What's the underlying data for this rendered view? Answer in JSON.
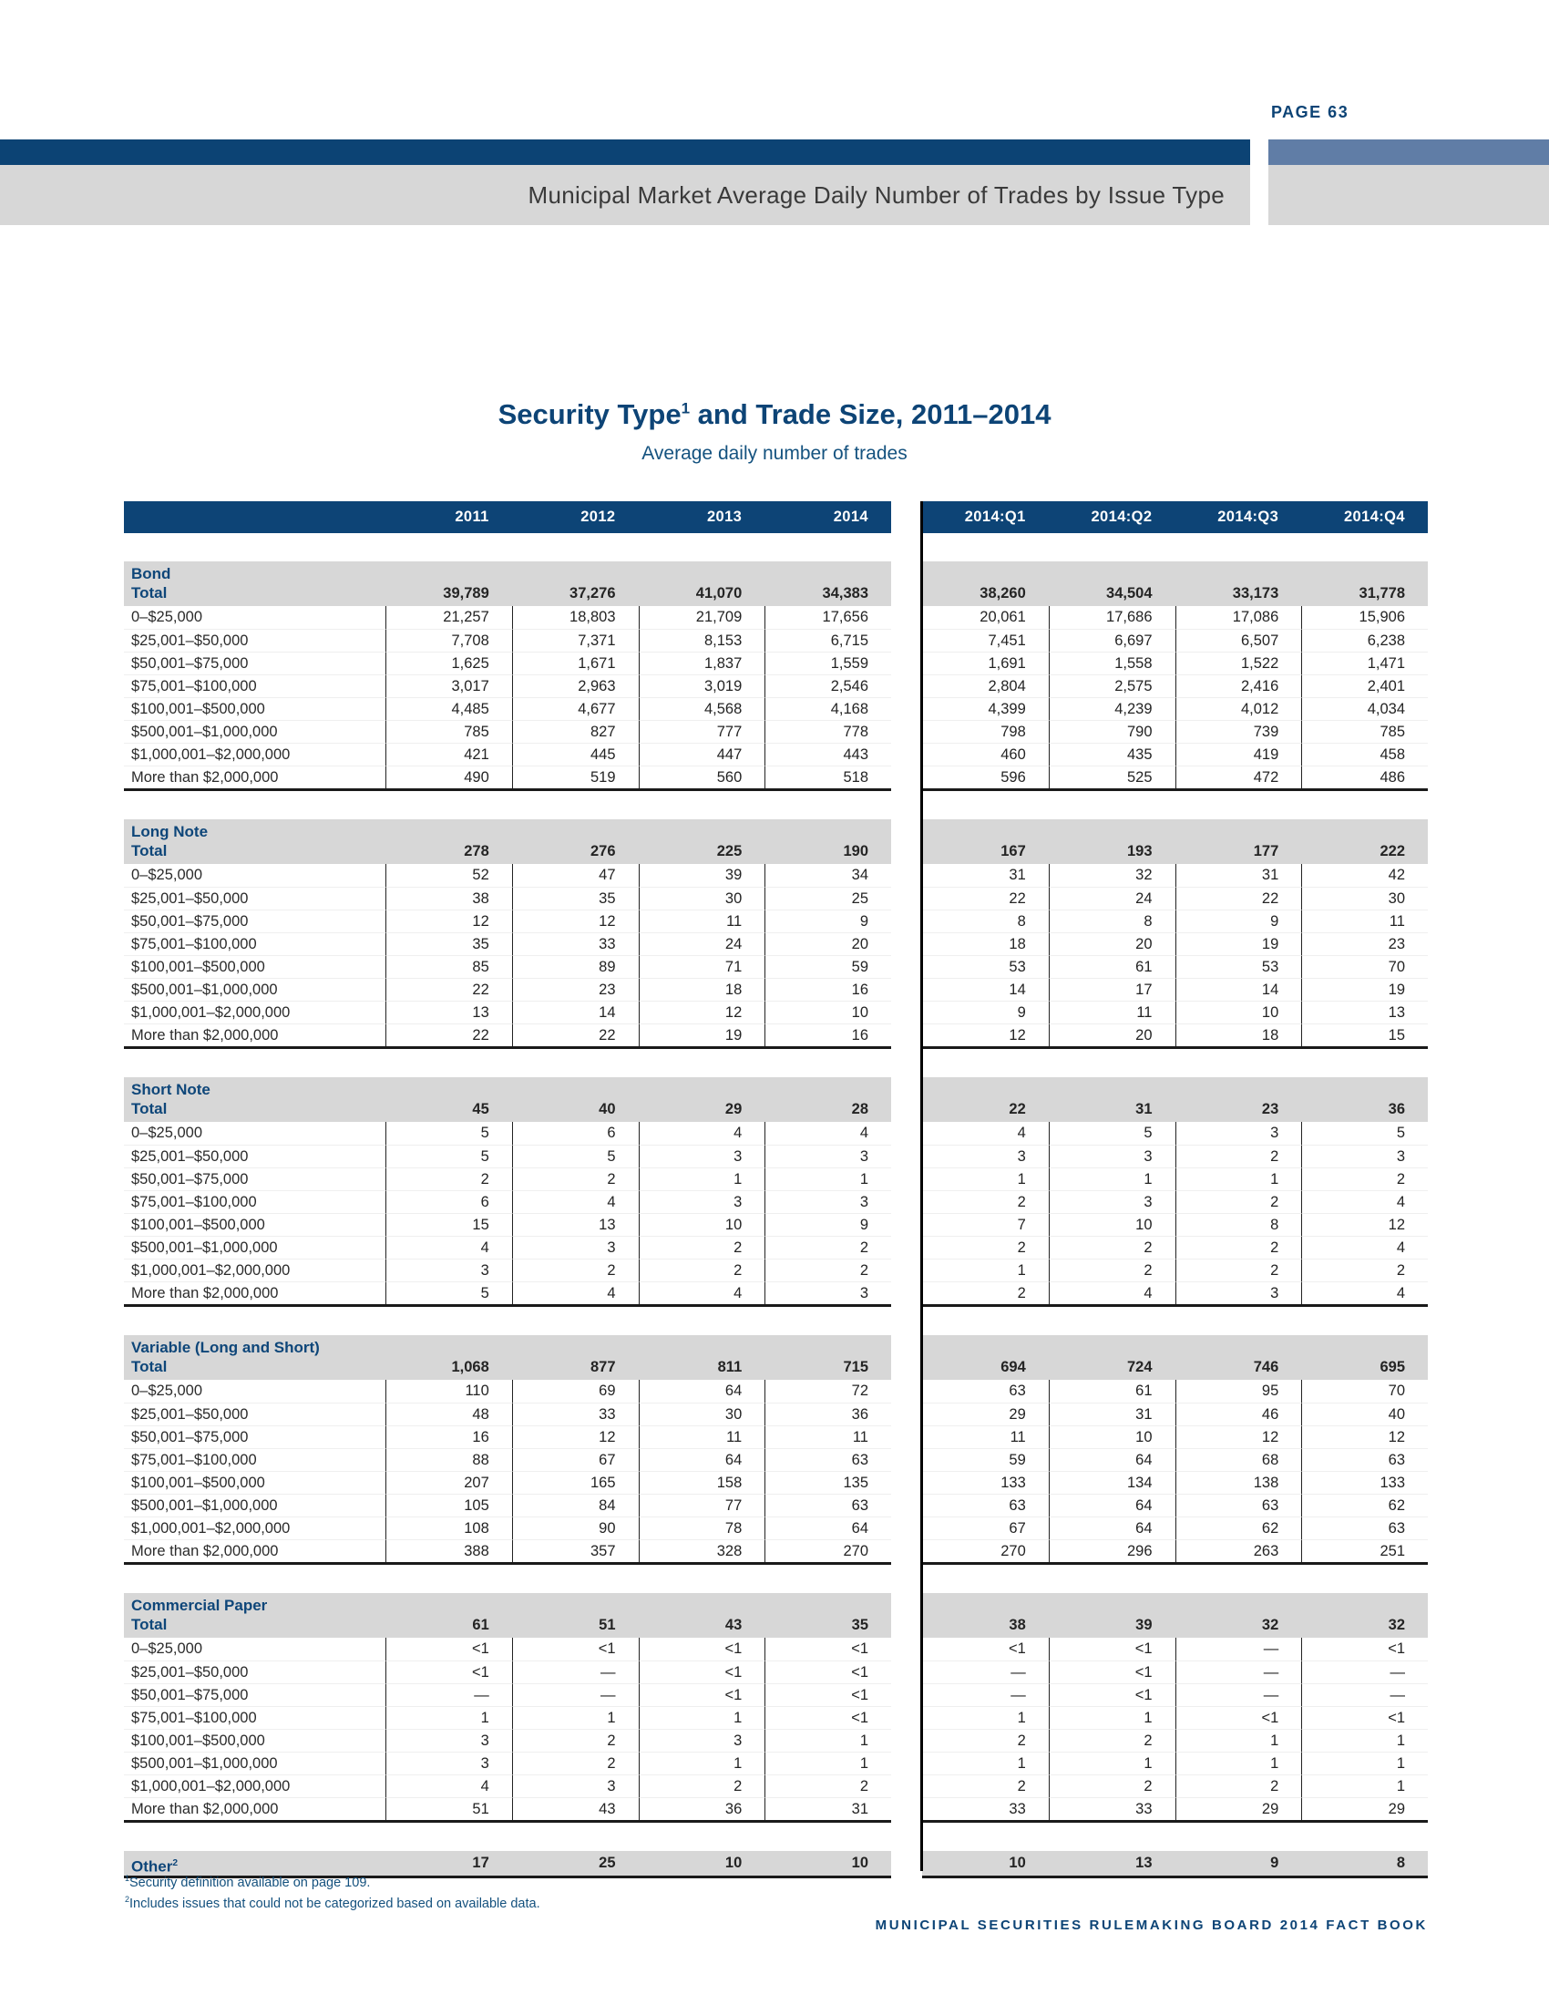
{
  "header": {
    "page_label": "PAGE 63",
    "banner_title": "Municipal Market Average Daily Number of Trades by Issue Type"
  },
  "title": {
    "prefix": "Security Type",
    "sup": "1",
    "suffix": " and Trade Size, 2011–2014",
    "subtitle": "Average daily number of trades"
  },
  "columns": {
    "years": [
      "2011",
      "2012",
      "2013",
      "2014"
    ],
    "quarters": [
      "2014:Q1",
      "2014:Q2",
      "2014:Q3",
      "2014:Q4"
    ]
  },
  "sections": [
    {
      "name": "Bond",
      "total_label": "Total",
      "total_years": [
        "39,789",
        "37,276",
        "41,070",
        "34,383"
      ],
      "total_quarters": [
        "38,260",
        "34,504",
        "33,173",
        "31,778"
      ],
      "rows": [
        {
          "label": "0–$25,000",
          "years": [
            "21,257",
            "18,803",
            "21,709",
            "17,656"
          ],
          "quarters": [
            "20,061",
            "17,686",
            "17,086",
            "15,906"
          ]
        },
        {
          "label": "$25,001–$50,000",
          "years": [
            "7,708",
            "7,371",
            "8,153",
            "6,715"
          ],
          "quarters": [
            "7,451",
            "6,697",
            "6,507",
            "6,238"
          ]
        },
        {
          "label": "$50,001–$75,000",
          "years": [
            "1,625",
            "1,671",
            "1,837",
            "1,559"
          ],
          "quarters": [
            "1,691",
            "1,558",
            "1,522",
            "1,471"
          ]
        },
        {
          "label": "$75,001–$100,000",
          "years": [
            "3,017",
            "2,963",
            "3,019",
            "2,546"
          ],
          "quarters": [
            "2,804",
            "2,575",
            "2,416",
            "2,401"
          ]
        },
        {
          "label": "$100,001–$500,000",
          "years": [
            "4,485",
            "4,677",
            "4,568",
            "4,168"
          ],
          "quarters": [
            "4,399",
            "4,239",
            "4,012",
            "4,034"
          ]
        },
        {
          "label": "$500,001–$1,000,000",
          "years": [
            "785",
            "827",
            "777",
            "778"
          ],
          "quarters": [
            "798",
            "790",
            "739",
            "785"
          ]
        },
        {
          "label": "$1,000,001–$2,000,000",
          "years": [
            "421",
            "445",
            "447",
            "443"
          ],
          "quarters": [
            "460",
            "435",
            "419",
            "458"
          ]
        },
        {
          "label": "More than $2,000,000",
          "years": [
            "490",
            "519",
            "560",
            "518"
          ],
          "quarters": [
            "596",
            "525",
            "472",
            "486"
          ]
        }
      ]
    },
    {
      "name": "Long Note",
      "total_label": "Total",
      "total_years": [
        "278",
        "276",
        "225",
        "190"
      ],
      "total_quarters": [
        "167",
        "193",
        "177",
        "222"
      ],
      "rows": [
        {
          "label": "0–$25,000",
          "years": [
            "52",
            "47",
            "39",
            "34"
          ],
          "quarters": [
            "31",
            "32",
            "31",
            "42"
          ]
        },
        {
          "label": "$25,001–$50,000",
          "years": [
            "38",
            "35",
            "30",
            "25"
          ],
          "quarters": [
            "22",
            "24",
            "22",
            "30"
          ]
        },
        {
          "label": "$50,001–$75,000",
          "years": [
            "12",
            "12",
            "11",
            "9"
          ],
          "quarters": [
            "8",
            "8",
            "9",
            "11"
          ]
        },
        {
          "label": "$75,001–$100,000",
          "years": [
            "35",
            "33",
            "24",
            "20"
          ],
          "quarters": [
            "18",
            "20",
            "19",
            "23"
          ]
        },
        {
          "label": "$100,001–$500,000",
          "years": [
            "85",
            "89",
            "71",
            "59"
          ],
          "quarters": [
            "53",
            "61",
            "53",
            "70"
          ]
        },
        {
          "label": "$500,001–$1,000,000",
          "years": [
            "22",
            "23",
            "18",
            "16"
          ],
          "quarters": [
            "14",
            "17",
            "14",
            "19"
          ]
        },
        {
          "label": "$1,000,001–$2,000,000",
          "years": [
            "13",
            "14",
            "12",
            "10"
          ],
          "quarters": [
            "9",
            "11",
            "10",
            "13"
          ]
        },
        {
          "label": "More than $2,000,000",
          "years": [
            "22",
            "22",
            "19",
            "16"
          ],
          "quarters": [
            "12",
            "20",
            "18",
            "15"
          ]
        }
      ]
    },
    {
      "name": "Short Note",
      "total_label": "Total",
      "total_years": [
        "45",
        "40",
        "29",
        "28"
      ],
      "total_quarters": [
        "22",
        "31",
        "23",
        "36"
      ],
      "rows": [
        {
          "label": "0–$25,000",
          "years": [
            "5",
            "6",
            "4",
            "4"
          ],
          "quarters": [
            "4",
            "5",
            "3",
            "5"
          ]
        },
        {
          "label": "$25,001–$50,000",
          "years": [
            "5",
            "5",
            "3",
            "3"
          ],
          "quarters": [
            "3",
            "3",
            "2",
            "3"
          ]
        },
        {
          "label": "$50,001–$75,000",
          "years": [
            "2",
            "2",
            "1",
            "1"
          ],
          "quarters": [
            "1",
            "1",
            "1",
            "2"
          ]
        },
        {
          "label": "$75,001–$100,000",
          "years": [
            "6",
            "4",
            "3",
            "3"
          ],
          "quarters": [
            "2",
            "3",
            "2",
            "4"
          ]
        },
        {
          "label": "$100,001–$500,000",
          "years": [
            "15",
            "13",
            "10",
            "9"
          ],
          "quarters": [
            "7",
            "10",
            "8",
            "12"
          ]
        },
        {
          "label": "$500,001–$1,000,000",
          "years": [
            "4",
            "3",
            "2",
            "2"
          ],
          "quarters": [
            "2",
            "2",
            "2",
            "4"
          ]
        },
        {
          "label": "$1,000,001–$2,000,000",
          "years": [
            "3",
            "2",
            "2",
            "2"
          ],
          "quarters": [
            "1",
            "2",
            "2",
            "2"
          ]
        },
        {
          "label": "More than $2,000,000",
          "years": [
            "5",
            "4",
            "4",
            "3"
          ],
          "quarters": [
            "2",
            "4",
            "3",
            "4"
          ]
        }
      ]
    },
    {
      "name": "Variable (Long and Short)",
      "total_label": "Total",
      "total_years": [
        "1,068",
        "877",
        "811",
        "715"
      ],
      "total_quarters": [
        "694",
        "724",
        "746",
        "695"
      ],
      "rows": [
        {
          "label": "0–$25,000",
          "years": [
            "110",
            "69",
            "64",
            "72"
          ],
          "quarters": [
            "63",
            "61",
            "95",
            "70"
          ]
        },
        {
          "label": "$25,001–$50,000",
          "years": [
            "48",
            "33",
            "30",
            "36"
          ],
          "quarters": [
            "29",
            "31",
            "46",
            "40"
          ]
        },
        {
          "label": "$50,001–$75,000",
          "years": [
            "16",
            "12",
            "11",
            "11"
          ],
          "quarters": [
            "11",
            "10",
            "12",
            "12"
          ]
        },
        {
          "label": "$75,001–$100,000",
          "years": [
            "88",
            "67",
            "64",
            "63"
          ],
          "quarters": [
            "59",
            "64",
            "68",
            "63"
          ]
        },
        {
          "label": "$100,001–$500,000",
          "years": [
            "207",
            "165",
            "158",
            "135"
          ],
          "quarters": [
            "133",
            "134",
            "138",
            "133"
          ]
        },
        {
          "label": "$500,001–$1,000,000",
          "years": [
            "105",
            "84",
            "77",
            "63"
          ],
          "quarters": [
            "63",
            "64",
            "63",
            "62"
          ]
        },
        {
          "label": "$1,000,001–$2,000,000",
          "years": [
            "108",
            "90",
            "78",
            "64"
          ],
          "quarters": [
            "67",
            "64",
            "62",
            "63"
          ]
        },
        {
          "label": "More than $2,000,000",
          "years": [
            "388",
            "357",
            "328",
            "270"
          ],
          "quarters": [
            "270",
            "296",
            "263",
            "251"
          ]
        }
      ]
    },
    {
      "name": "Commercial Paper",
      "total_label": "Total",
      "total_years": [
        "61",
        "51",
        "43",
        "35"
      ],
      "total_quarters": [
        "38",
        "39",
        "32",
        "32"
      ],
      "rows": [
        {
          "label": "0–$25,000",
          "years": [
            "<1",
            "<1",
            "<1",
            "<1"
          ],
          "quarters": [
            "<1",
            "<1",
            "—",
            "<1"
          ]
        },
        {
          "label": "$25,001–$50,000",
          "years": [
            "<1",
            "—",
            "<1",
            "<1"
          ],
          "quarters": [
            "—",
            "<1",
            "—",
            "—"
          ]
        },
        {
          "label": "$50,001–$75,000",
          "years": [
            "—",
            "—",
            "<1",
            "<1"
          ],
          "quarters": [
            "—",
            "<1",
            "—",
            "—"
          ]
        },
        {
          "label": "$75,001–$100,000",
          "years": [
            "1",
            "1",
            "1",
            "<1"
          ],
          "quarters": [
            "1",
            "1",
            "<1",
            "<1"
          ]
        },
        {
          "label": "$100,001–$500,000",
          "years": [
            "3",
            "2",
            "3",
            "1"
          ],
          "quarters": [
            "2",
            "2",
            "1",
            "1"
          ]
        },
        {
          "label": "$500,001–$1,000,000",
          "years": [
            "3",
            "2",
            "1",
            "1"
          ],
          "quarters": [
            "1",
            "1",
            "1",
            "1"
          ]
        },
        {
          "label": "$1,000,001–$2,000,000",
          "years": [
            "4",
            "3",
            "2",
            "2"
          ],
          "quarters": [
            "2",
            "2",
            "2",
            "1"
          ]
        },
        {
          "label": "More than $2,000,000",
          "years": [
            "51",
            "43",
            "36",
            "31"
          ],
          "quarters": [
            "33",
            "33",
            "29",
            "29"
          ]
        }
      ]
    }
  ],
  "other_row": {
    "label": "Other",
    "sup": "2",
    "years": [
      "17",
      "25",
      "10",
      "10"
    ],
    "quarters": [
      "10",
      "13",
      "9",
      "8"
    ]
  },
  "footnotes": [
    {
      "sup": "1",
      "text": "Security definition available on page 109."
    },
    {
      "sup": "2",
      "text": "Includes issues that could not be categorized based on available data."
    }
  ],
  "footer": {
    "text": "MUNICIPAL SECURITIES RULEMAKING BOARD 2014 FACT BOOK"
  },
  "colors": {
    "navy": "#0d4476",
    "slate_blue": "#607da6",
    "band_gray": "#d7d7d7",
    "total_blue": "#155382",
    "body_text": "#242424",
    "banner_text": "#3a3a3a"
  }
}
